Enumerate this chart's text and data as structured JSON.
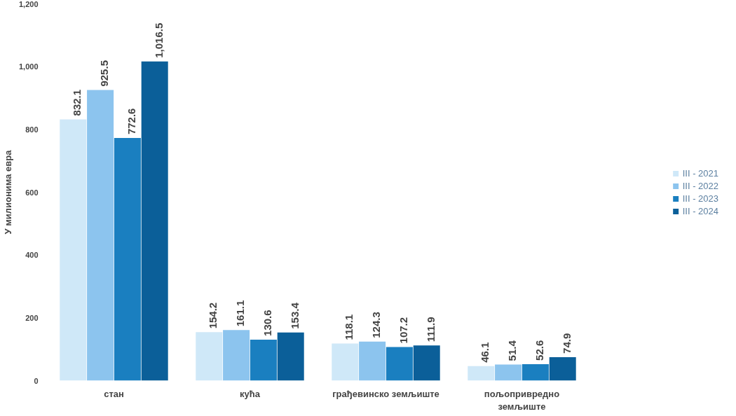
{
  "chart_data": {
    "type": "bar",
    "ylabel": "У милионима евра",
    "categories": [
      "стан",
      "кућа",
      "грађевинско земљиште",
      "пољопривредно земљиште"
    ],
    "series": [
      {
        "name": "III - 2021",
        "color": "#cfe8f8",
        "values": [
          832.1,
          154.2,
          118.1,
          46.1
        ],
        "value_labels": [
          "832.1",
          "154.2",
          "118.1",
          "46.1"
        ]
      },
      {
        "name": "III - 2022",
        "color": "#8cc4ee",
        "values": [
          925.5,
          161.1,
          124.3,
          51.4
        ],
        "value_labels": [
          "925.5",
          "161.1",
          "124.3",
          "51.4"
        ]
      },
      {
        "name": "III - 2023",
        "color": "#1a7fc0",
        "values": [
          772.6,
          130.6,
          107.2,
          52.6
        ],
        "value_labels": [
          "772.6",
          "130.6",
          "107.2",
          "52.6"
        ]
      },
      {
        "name": "III - 2024",
        "color": "#0b5f99",
        "values": [
          1016.5,
          153.4,
          111.9,
          74.9
        ],
        "value_labels": [
          "1,016.5",
          "153.4",
          "111.9",
          "74.9"
        ]
      }
    ],
    "ylim": [
      0,
      1200
    ],
    "yticks": [
      0,
      200,
      400,
      600,
      800,
      {
        "value": 1000,
        "label": "1,000"
      },
      {
        "value": 1200,
        "label": "1,200"
      }
    ],
    "grid": false,
    "legend": "right"
  }
}
